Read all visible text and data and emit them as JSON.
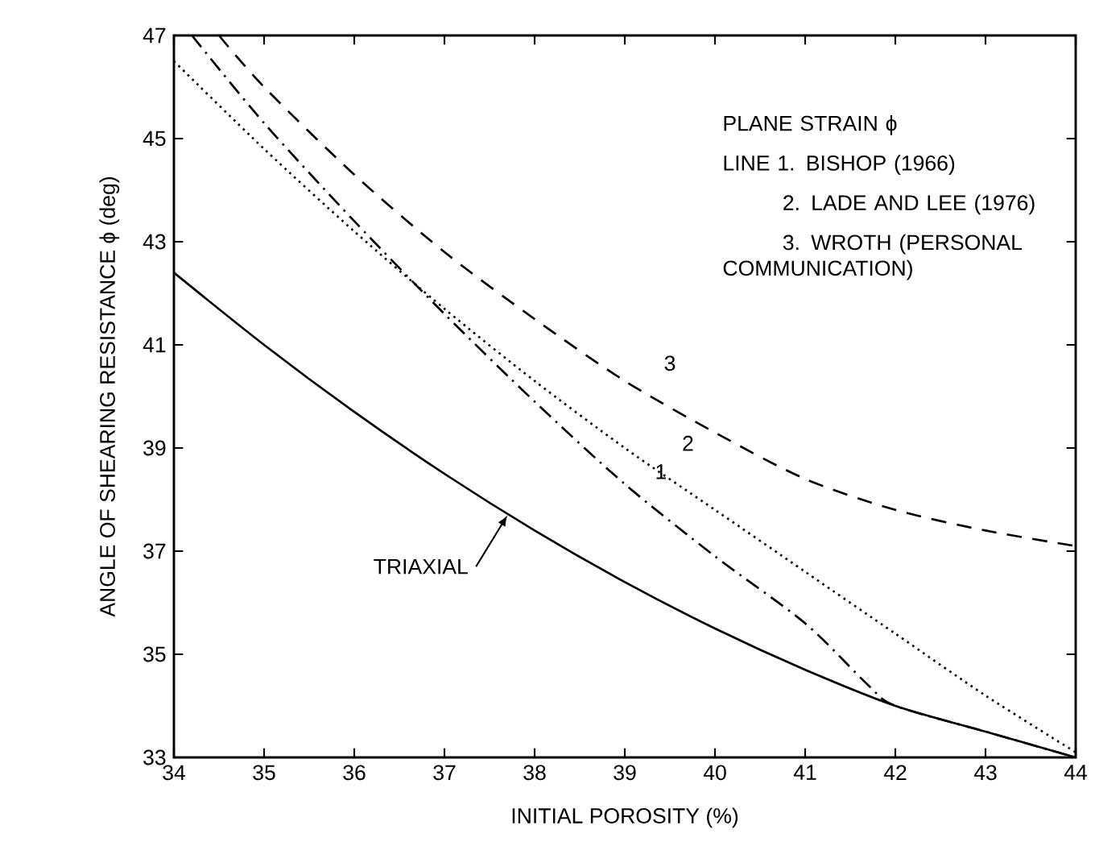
{
  "chart_data": {
    "type": "line",
    "xlabel": "INITIAL POROSITY (%)",
    "ylabel": "ANGLE OF SHEARING RESISTANCE ϕ (deg)",
    "xlim": [
      34,
      44
    ],
    "ylim": [
      33,
      47
    ],
    "xticks": [
      34,
      35,
      36,
      37,
      38,
      39,
      40,
      41,
      42,
      43,
      44
    ],
    "yticks": [
      33,
      35,
      37,
      39,
      41,
      43,
      45,
      47
    ],
    "grid": false,
    "marker": "none",
    "series": [
      {
        "color": "#000000",
        "line_style": "solid",
        "x": [
          34,
          35,
          36,
          37,
          38,
          39,
          40,
          41,
          42,
          43,
          44
        ],
        "values": [
          42.4,
          41.0,
          39.7,
          38.5,
          37.4,
          36.4,
          35.5,
          34.7,
          34.0,
          33.5,
          33.0
        ]
      },
      {
        "color": "#000000",
        "line_style": "dashdot",
        "x": [
          34.2,
          35,
          36,
          37,
          38,
          39,
          40,
          41,
          41.7,
          42,
          43,
          44
        ],
        "values": [
          47,
          45.3,
          43.4,
          41.6,
          39.9,
          38.3,
          36.9,
          35.6,
          34.4,
          34.0,
          33.5,
          33.0
        ]
      },
      {
        "color": "#000000",
        "line_style": "dotted",
        "x": [
          34,
          35,
          36,
          37,
          38,
          39,
          40,
          41,
          42,
          43,
          44
        ],
        "values": [
          46.5,
          44.8,
          43.2,
          41.7,
          40.3,
          39.0,
          37.8,
          36.6,
          35.4,
          34.2,
          33.1
        ]
      },
      {
        "color": "#000000",
        "line_style": "dashed",
        "x": [
          34.5,
          35,
          36,
          37,
          38,
          39,
          40,
          41,
          42,
          43,
          44
        ],
        "values": [
          47,
          46.0,
          44.3,
          42.8,
          41.5,
          40.3,
          39.3,
          38.4,
          37.8,
          37.4,
          37.1
        ]
      }
    ],
    "annotations": [
      "PLANE STRAIN ϕ",
      "LINE 1. BISHOP (1966)",
      "2. LADE AND LEE (1976)",
      "3. WROTH (PERSONAL COMMUNICATION)",
      {
        "text": "TRIAXIAL",
        "x": 37.7,
        "y": 37.7
      },
      {
        "text": "1",
        "x": 39.4,
        "y": 37.7
      },
      {
        "text": "2",
        "x": 39.6,
        "y": 38.3
      },
      {
        "text": "3",
        "x": 39.5,
        "y": 39.8
      }
    ]
  }
}
